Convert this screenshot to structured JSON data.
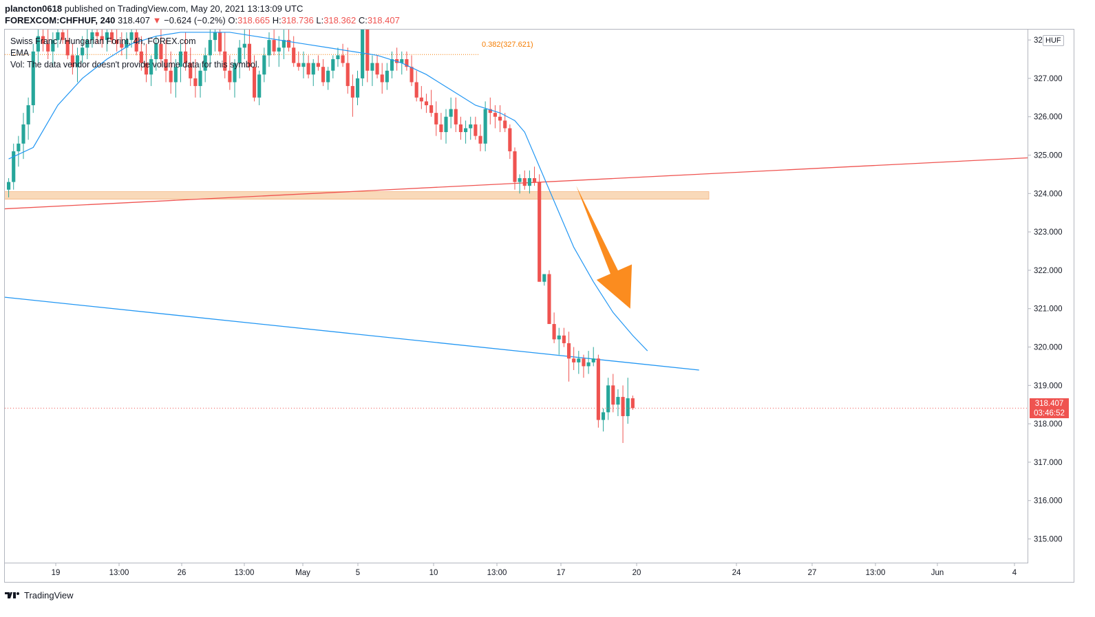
{
  "header": {
    "user": "plancton0618",
    "published": " published on TradingView.com, May 20, 2021 13:13:09 UTC",
    "symbol": "FOREXCOM:CHFHUF, 240",
    "last": "318.407",
    "change_arrow": "▼",
    "change": "−0.624 (−0.2%)",
    "o_label": "O:",
    "o_value": "318.665",
    "h_label": "H:",
    "h_value": "318.736",
    "l_label": "L:",
    "l_value": "318.362",
    "c_label": "C:",
    "c_value": "318.407"
  },
  "legend": {
    "title": "Swiss Franc / Hungarian Forint, 4h, FOREX.com",
    "ema": "EMA",
    "vol": "Vol: The data vendor doesn't provide volume data for this symbol."
  },
  "currency": "HUF",
  "fib_label": "0.382(327.621)",
  "price_tag": {
    "price": "318.407",
    "countdown": "03:46:52"
  },
  "brand": "TradingView",
  "colors": {
    "up": "#26a69a",
    "down": "#ef5350",
    "ema": "#2196f3",
    "support": "#ef5350",
    "trend": "#2196f3",
    "zone": "#f8cfa7",
    "arrow": "#fb8c1f",
    "fib": "#f57c00"
  },
  "chart_data": {
    "type": "candlestick",
    "symbol": "FOREXCOM:CHFHUF",
    "interval": "4h",
    "y_ticks": [
      "315.000",
      "316.000",
      "317.000",
      "318.000",
      "319.000",
      "320.000",
      "321.000",
      "322.000",
      "323.000",
      "324.000",
      "325.000",
      "326.000",
      "327.000",
      "328.000"
    ],
    "x_ticks": [
      "19",
      "13:00",
      "26",
      "13:00",
      "May",
      "5",
      "10",
      "13:00",
      "17",
      "20",
      "24",
      "27",
      "13:00",
      "Jun",
      "4"
    ],
    "ylim": [
      314.4,
      328.4
    ],
    "zone": [
      323.85,
      324.05
    ],
    "fib_level": 327.621,
    "last_price": 318.407,
    "candles": [
      [
        324.1,
        324.4,
        323.9,
        324.3
      ],
      [
        324.3,
        325.3,
        324.1,
        325.1
      ],
      [
        325.1,
        325.5,
        324.7,
        325.3
      ],
      [
        325.3,
        326.1,
        324.9,
        325.8
      ],
      [
        325.8,
        326.5,
        325.4,
        326.3
      ],
      [
        326.3,
        327.9,
        326.1,
        327.7
      ],
      [
        327.7,
        328.3,
        327.4,
        328.1
      ],
      [
        328.1,
        328.4,
        327.7,
        327.9
      ],
      [
        327.9,
        328.3,
        327.5,
        327.7
      ],
      [
        327.7,
        328.2,
        327.3,
        328.0
      ],
      [
        328.0,
        328.4,
        327.8,
        328.2
      ],
      [
        328.2,
        328.4,
        327.9,
        328.0
      ],
      [
        328.0,
        328.3,
        327.5,
        327.6
      ],
      [
        327.6,
        327.9,
        327.1,
        327.3
      ],
      [
        327.3,
        327.8,
        326.9,
        327.6
      ],
      [
        327.6,
        328.1,
        327.4,
        327.8
      ],
      [
        327.8,
        328.3,
        327.5,
        328.0
      ],
      [
        328.0,
        328.4,
        327.8,
        328.2
      ],
      [
        328.2,
        328.4,
        327.9,
        328.1
      ],
      [
        328.1,
        328.3,
        327.8,
        328.0
      ],
      [
        328.0,
        328.4,
        327.7,
        328.2
      ],
      [
        328.2,
        328.4,
        327.9,
        328.0
      ],
      [
        328.0,
        328.3,
        327.7,
        327.9
      ],
      [
        327.9,
        328.2,
        327.6,
        327.8
      ],
      [
        327.8,
        328.2,
        327.5,
        328.0
      ],
      [
        328.0,
        328.4,
        327.8,
        328.2
      ],
      [
        328.2,
        328.4,
        327.6,
        327.7
      ],
      [
        327.7,
        328.1,
        327.2,
        327.4
      ],
      [
        327.4,
        327.9,
        326.9,
        327.1
      ],
      [
        327.1,
        327.6,
        326.8,
        327.5
      ],
      [
        327.5,
        328.1,
        327.2,
        327.9
      ],
      [
        327.9,
        328.4,
        327.3,
        327.5
      ],
      [
        327.5,
        328.0,
        326.9,
        327.2
      ],
      [
        327.2,
        327.7,
        326.6,
        326.9
      ],
      [
        326.9,
        327.5,
        326.5,
        327.3
      ],
      [
        327.3,
        327.9,
        326.9,
        327.7
      ],
      [
        327.7,
        328.2,
        327.2,
        327.4
      ],
      [
        327.4,
        327.8,
        326.8,
        327.0
      ],
      [
        327.0,
        327.5,
        326.5,
        326.8
      ],
      [
        326.8,
        327.4,
        326.5,
        327.2
      ],
      [
        327.2,
        327.8,
        326.9,
        327.6
      ],
      [
        327.6,
        328.3,
        327.3,
        328.0
      ],
      [
        328.0,
        328.4,
        327.7,
        328.2
      ],
      [
        328.2,
        328.4,
        327.6,
        327.7
      ],
      [
        327.7,
        328.2,
        327.0,
        327.2
      ],
      [
        327.2,
        327.6,
        326.7,
        326.9
      ],
      [
        326.9,
        327.5,
        326.5,
        327.4
      ],
      [
        327.4,
        328.0,
        327.0,
        327.8
      ],
      [
        327.8,
        328.3,
        327.5,
        327.9
      ],
      [
        327.9,
        328.3,
        327.2,
        327.3
      ],
      [
        327.3,
        327.6,
        326.4,
        326.5
      ],
      [
        326.5,
        327.2,
        326.3,
        327.1
      ],
      [
        327.1,
        327.8,
        326.9,
        327.6
      ],
      [
        327.6,
        328.2,
        327.3,
        328.0
      ],
      [
        328.0,
        328.4,
        327.6,
        327.7
      ],
      [
        327.7,
        328.1,
        327.3,
        327.8
      ],
      [
        327.8,
        328.3,
        327.5,
        328.0
      ],
      [
        328.0,
        328.4,
        327.7,
        327.8
      ],
      [
        327.8,
        328.1,
        327.3,
        327.4
      ],
      [
        327.4,
        327.7,
        327.2,
        327.3
      ],
      [
        327.3,
        327.7,
        327.0,
        327.4
      ],
      [
        327.4,
        327.6,
        327.0,
        327.1
      ],
      [
        327.1,
        327.5,
        326.8,
        327.4
      ],
      [
        327.4,
        327.6,
        327.2,
        327.3
      ],
      [
        327.3,
        327.5,
        326.8,
        326.9
      ],
      [
        326.9,
        327.3,
        326.7,
        327.2
      ],
      [
        327.2,
        327.6,
        327.0,
        327.5
      ],
      [
        327.5,
        327.8,
        327.3,
        327.6
      ],
      [
        327.6,
        327.9,
        327.3,
        327.4
      ],
      [
        327.4,
        327.8,
        326.6,
        326.8
      ],
      [
        326.8,
        327.1,
        326.0,
        326.5
      ],
      [
        326.5,
        327.2,
        326.3,
        327.0
      ],
      [
        327.0,
        328.4,
        326.8,
        328.3
      ],
      [
        328.3,
        328.4,
        326.9,
        327.2
      ],
      [
        327.2,
        327.6,
        326.8,
        327.4
      ],
      [
        327.4,
        327.6,
        327.0,
        327.1
      ],
      [
        327.1,
        327.4,
        326.6,
        326.9
      ],
      [
        326.9,
        327.4,
        326.7,
        327.2
      ],
      [
        327.2,
        327.7,
        327.0,
        327.5
      ],
      [
        327.5,
        327.8,
        327.2,
        327.4
      ],
      [
        327.4,
        327.7,
        327.1,
        327.5
      ],
      [
        327.5,
        327.7,
        327.2,
        327.3
      ],
      [
        327.3,
        327.6,
        326.8,
        326.9
      ],
      [
        326.9,
        327.2,
        326.4,
        326.5
      ],
      [
        326.5,
        326.8,
        326.2,
        326.4
      ],
      [
        326.4,
        326.6,
        326.1,
        326.3
      ],
      [
        326.3,
        326.7,
        326.0,
        326.1
      ],
      [
        326.1,
        326.4,
        325.5,
        325.8
      ],
      [
        325.8,
        326.1,
        325.4,
        325.6
      ],
      [
        325.6,
        326.2,
        325.3,
        326.0
      ],
      [
        326.0,
        326.5,
        325.7,
        326.2
      ],
      [
        326.2,
        326.5,
        325.6,
        325.8
      ],
      [
        325.8,
        326.0,
        325.4,
        325.6
      ],
      [
        325.6,
        325.9,
        325.3,
        325.7
      ],
      [
        325.7,
        326.0,
        325.4,
        325.8
      ],
      [
        325.8,
        326.0,
        325.4,
        325.5
      ],
      [
        325.5,
        325.8,
        325.1,
        325.3
      ],
      [
        325.3,
        326.4,
        325.1,
        326.2
      ],
      [
        326.2,
        326.5,
        325.8,
        326.1
      ],
      [
        326.1,
        326.3,
        325.7,
        326.0
      ],
      [
        326.0,
        326.3,
        325.6,
        325.9
      ],
      [
        325.9,
        326.1,
        325.6,
        325.7
      ],
      [
        325.7,
        325.8,
        324.9,
        325.1
      ],
      [
        325.1,
        325.2,
        324.1,
        324.3
      ],
      [
        324.3,
        324.5,
        324.0,
        324.4
      ],
      [
        324.4,
        324.6,
        324.1,
        324.2
      ],
      [
        324.2,
        324.6,
        324.0,
        324.4
      ],
      [
        324.4,
        324.7,
        324.2,
        324.3
      ],
      [
        324.3,
        324.5,
        321.7,
        321.7
      ],
      [
        321.7,
        321.9,
        321.6,
        321.9
      ],
      [
        321.9,
        322.0,
        320.6,
        320.6
      ],
      [
        320.6,
        320.9,
        320.1,
        320.2
      ],
      [
        320.2,
        320.5,
        319.8,
        320.3
      ],
      [
        320.3,
        320.5,
        320.0,
        320.1
      ],
      [
        320.1,
        320.4,
        319.1,
        319.7
      ],
      [
        319.7,
        320.0,
        319.4,
        319.6
      ],
      [
        319.6,
        319.9,
        319.3,
        319.7
      ],
      [
        319.7,
        319.8,
        319.2,
        319.5
      ],
      [
        319.5,
        319.9,
        319.3,
        319.6
      ],
      [
        319.6,
        320.0,
        319.5,
        319.7
      ],
      [
        319.7,
        319.8,
        317.9,
        318.1
      ],
      [
        318.1,
        318.4,
        317.8,
        318.3
      ],
      [
        318.3,
        319.2,
        318.1,
        319.0
      ],
      [
        319.0,
        319.3,
        318.3,
        318.5
      ],
      [
        318.5,
        318.9,
        318.2,
        318.7
      ],
      [
        318.7,
        319.0,
        317.5,
        318.2
      ],
      [
        318.2,
        319.2,
        318.0,
        318.665
      ],
      [
        318.665,
        318.736,
        318.362,
        318.407
      ]
    ],
    "ema": [
      [
        0,
        324.9
      ],
      [
        5,
        325.2
      ],
      [
        10,
        326.3
      ],
      [
        15,
        327.0
      ],
      [
        20,
        327.5
      ],
      [
        25,
        327.9
      ],
      [
        30,
        328.1
      ],
      [
        35,
        328.2
      ],
      [
        40,
        328.2
      ],
      [
        45,
        328.2
      ],
      [
        50,
        328.1
      ],
      [
        55,
        328.0
      ],
      [
        60,
        327.9
      ],
      [
        65,
        327.8
      ],
      [
        70,
        327.7
      ],
      [
        75,
        327.6
      ],
      [
        80,
        327.4
      ],
      [
        85,
        327.1
      ],
      [
        90,
        326.7
      ],
      [
        95,
        326.3
      ],
      [
        100,
        326.1
      ],
      [
        103,
        325.9
      ],
      [
        105,
        325.6
      ],
      [
        108,
        324.7
      ],
      [
        111,
        323.8
      ],
      [
        115,
        322.6
      ],
      [
        119,
        321.7
      ],
      [
        123,
        320.9
      ],
      [
        127,
        320.3
      ],
      [
        130,
        319.9
      ]
    ],
    "annotations": [
      {
        "kind": "line",
        "color": "#ef5350",
        "from": [
          -0.5,
          323.6
        ],
        "to": [
          219,
          325.0
        ]
      },
      {
        "kind": "line",
        "color": "#2196f3",
        "from": [
          -0.5,
          321.3
        ],
        "to": [
          141,
          319.4
        ]
      },
      {
        "kind": "zone",
        "from_index": -0.5,
        "to_index": 143,
        "top": 324.05,
        "bottom": 323.85
      },
      {
        "kind": "arrow",
        "color": "#fb8c1f",
        "from": [
          116,
          324.2
        ],
        "to": [
          127,
          321.0
        ]
      }
    ]
  }
}
